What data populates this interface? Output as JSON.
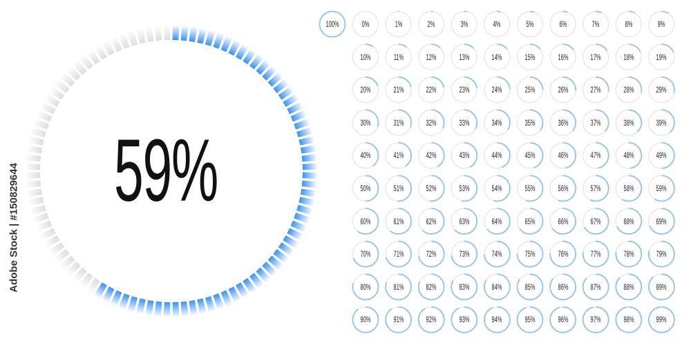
{
  "accent_color": "#2f8cf0",
  "track_color": "#e6e6e6",
  "big_meter": {
    "percent": 59,
    "label": "59%",
    "tick_count": 100
  },
  "grid": {
    "items": [
      {
        "label": "100%",
        "percent": 100
      },
      {
        "label": "0%",
        "percent": 0
      },
      {
        "label": "1%",
        "percent": 1
      },
      {
        "label": "2%",
        "percent": 2
      },
      {
        "label": "3%",
        "percent": 3
      },
      {
        "label": "4%",
        "percent": 4
      },
      {
        "label": "5%",
        "percent": 5
      },
      {
        "label": "6%",
        "percent": 6
      },
      {
        "label": "7%",
        "percent": 7
      },
      {
        "label": "8%",
        "percent": 8
      },
      {
        "label": "9%",
        "percent": 9
      },
      {
        "label": "10%",
        "percent": 10
      },
      {
        "label": "11%",
        "percent": 11
      },
      {
        "label": "12%",
        "percent": 12
      },
      {
        "label": "13%",
        "percent": 13
      },
      {
        "label": "14%",
        "percent": 14
      },
      {
        "label": "15%",
        "percent": 15
      },
      {
        "label": "16%",
        "percent": 16
      },
      {
        "label": "17%",
        "percent": 17
      },
      {
        "label": "18%",
        "percent": 18
      },
      {
        "label": "19%",
        "percent": 19
      },
      {
        "label": "20%",
        "percent": 20
      },
      {
        "label": "21%",
        "percent": 21
      },
      {
        "label": "22%",
        "percent": 22
      },
      {
        "label": "23%",
        "percent": 23
      },
      {
        "label": "24%",
        "percent": 24
      },
      {
        "label": "25%",
        "percent": 25
      },
      {
        "label": "26%",
        "percent": 26
      },
      {
        "label": "27%",
        "percent": 27
      },
      {
        "label": "28%",
        "percent": 28
      },
      {
        "label": "29%",
        "percent": 29
      },
      {
        "label": "30%",
        "percent": 30
      },
      {
        "label": "31%",
        "percent": 31
      },
      {
        "label": "32%",
        "percent": 32
      },
      {
        "label": "33%",
        "percent": 33
      },
      {
        "label": "34%",
        "percent": 34
      },
      {
        "label": "35%",
        "percent": 35
      },
      {
        "label": "36%",
        "percent": 36
      },
      {
        "label": "37%",
        "percent": 37
      },
      {
        "label": "38%",
        "percent": 38
      },
      {
        "label": "39%",
        "percent": 39
      },
      {
        "label": "40%",
        "percent": 40
      },
      {
        "label": "41%",
        "percent": 41
      },
      {
        "label": "42%",
        "percent": 42
      },
      {
        "label": "43%",
        "percent": 43
      },
      {
        "label": "44%",
        "percent": 44
      },
      {
        "label": "45%",
        "percent": 45
      },
      {
        "label": "46%",
        "percent": 46
      },
      {
        "label": "47%",
        "percent": 47
      },
      {
        "label": "48%",
        "percent": 48
      },
      {
        "label": "49%",
        "percent": 49
      },
      {
        "label": "50%",
        "percent": 50
      },
      {
        "label": "51%",
        "percent": 51
      },
      {
        "label": "52%",
        "percent": 52
      },
      {
        "label": "53%",
        "percent": 53
      },
      {
        "label": "54%",
        "percent": 54
      },
      {
        "label": "55%",
        "percent": 55
      },
      {
        "label": "56%",
        "percent": 56
      },
      {
        "label": "57%",
        "percent": 57
      },
      {
        "label": "58%",
        "percent": 58
      },
      {
        "label": "59%",
        "percent": 59
      },
      {
        "label": "60%",
        "percent": 60
      },
      {
        "label": "61%",
        "percent": 61
      },
      {
        "label": "62%",
        "percent": 62
      },
      {
        "label": "63%",
        "percent": 63
      },
      {
        "label": "64%",
        "percent": 64
      },
      {
        "label": "65%",
        "percent": 65
      },
      {
        "label": "66%",
        "percent": 66
      },
      {
        "label": "67%",
        "percent": 67
      },
      {
        "label": "68%",
        "percent": 68
      },
      {
        "label": "69%",
        "percent": 69
      },
      {
        "label": "70%",
        "percent": 70
      },
      {
        "label": "71%",
        "percent": 71
      },
      {
        "label": "72%",
        "percent": 72
      },
      {
        "label": "73%",
        "percent": 73
      },
      {
        "label": "74%",
        "percent": 74
      },
      {
        "label": "75%",
        "percent": 75
      },
      {
        "label": "76%",
        "percent": 76
      },
      {
        "label": "77%",
        "percent": 77
      },
      {
        "label": "78%",
        "percent": 78
      },
      {
        "label": "79%",
        "percent": 79
      },
      {
        "label": "80%",
        "percent": 80
      },
      {
        "label": "81%",
        "percent": 81
      },
      {
        "label": "82%",
        "percent": 82
      },
      {
        "label": "83%",
        "percent": 83
      },
      {
        "label": "84%",
        "percent": 84
      },
      {
        "label": "85%",
        "percent": 85
      },
      {
        "label": "86%",
        "percent": 86
      },
      {
        "label": "87%",
        "percent": 87
      },
      {
        "label": "88%",
        "percent": 88
      },
      {
        "label": "89%",
        "percent": 89
      },
      {
        "label": "90%",
        "percent": 90
      },
      {
        "label": "91%",
        "percent": 91
      },
      {
        "label": "92%",
        "percent": 92
      },
      {
        "label": "93%",
        "percent": 93
      },
      {
        "label": "94%",
        "percent": 94
      },
      {
        "label": "95%",
        "percent": 95
      },
      {
        "label": "96%",
        "percent": 96
      },
      {
        "label": "97%",
        "percent": 97
      },
      {
        "label": "98%",
        "percent": 98
      },
      {
        "label": "99%",
        "percent": 99
      }
    ]
  },
  "credit": "Adobe Stock | #150829644"
}
